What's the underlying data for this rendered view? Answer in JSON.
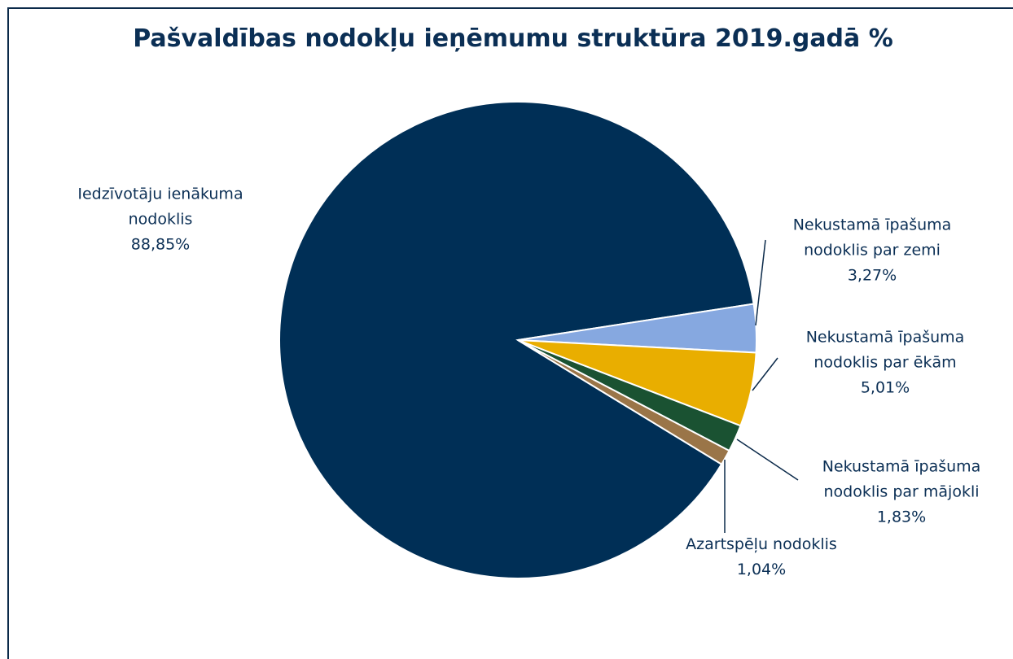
{
  "chart_data": {
    "type": "pie",
    "title": "Pašvaldības nodokļu ieņēmumu struktūra 2019.gadā %",
    "categories": [
      "Iedzīvotāju ienākuma nodoklis",
      "Nekustamā īpašuma nodoklis par zemi",
      "Nekustamā īpašuma nodoklis par ēkām",
      "Nekustamā īpašuma nodoklis par mājokli",
      "Azartspēļu nodoklis"
    ],
    "values": [
      88.85,
      3.27,
      5.01,
      1.83,
      1.04
    ],
    "value_labels": [
      "88,85%",
      "3,27%",
      "5,01%",
      "1,83%",
      "1,04%"
    ],
    "colors": [
      "#002f56",
      "#86a8e0",
      "#e9ae00",
      "#1a5232",
      "#9a7548"
    ]
  }
}
